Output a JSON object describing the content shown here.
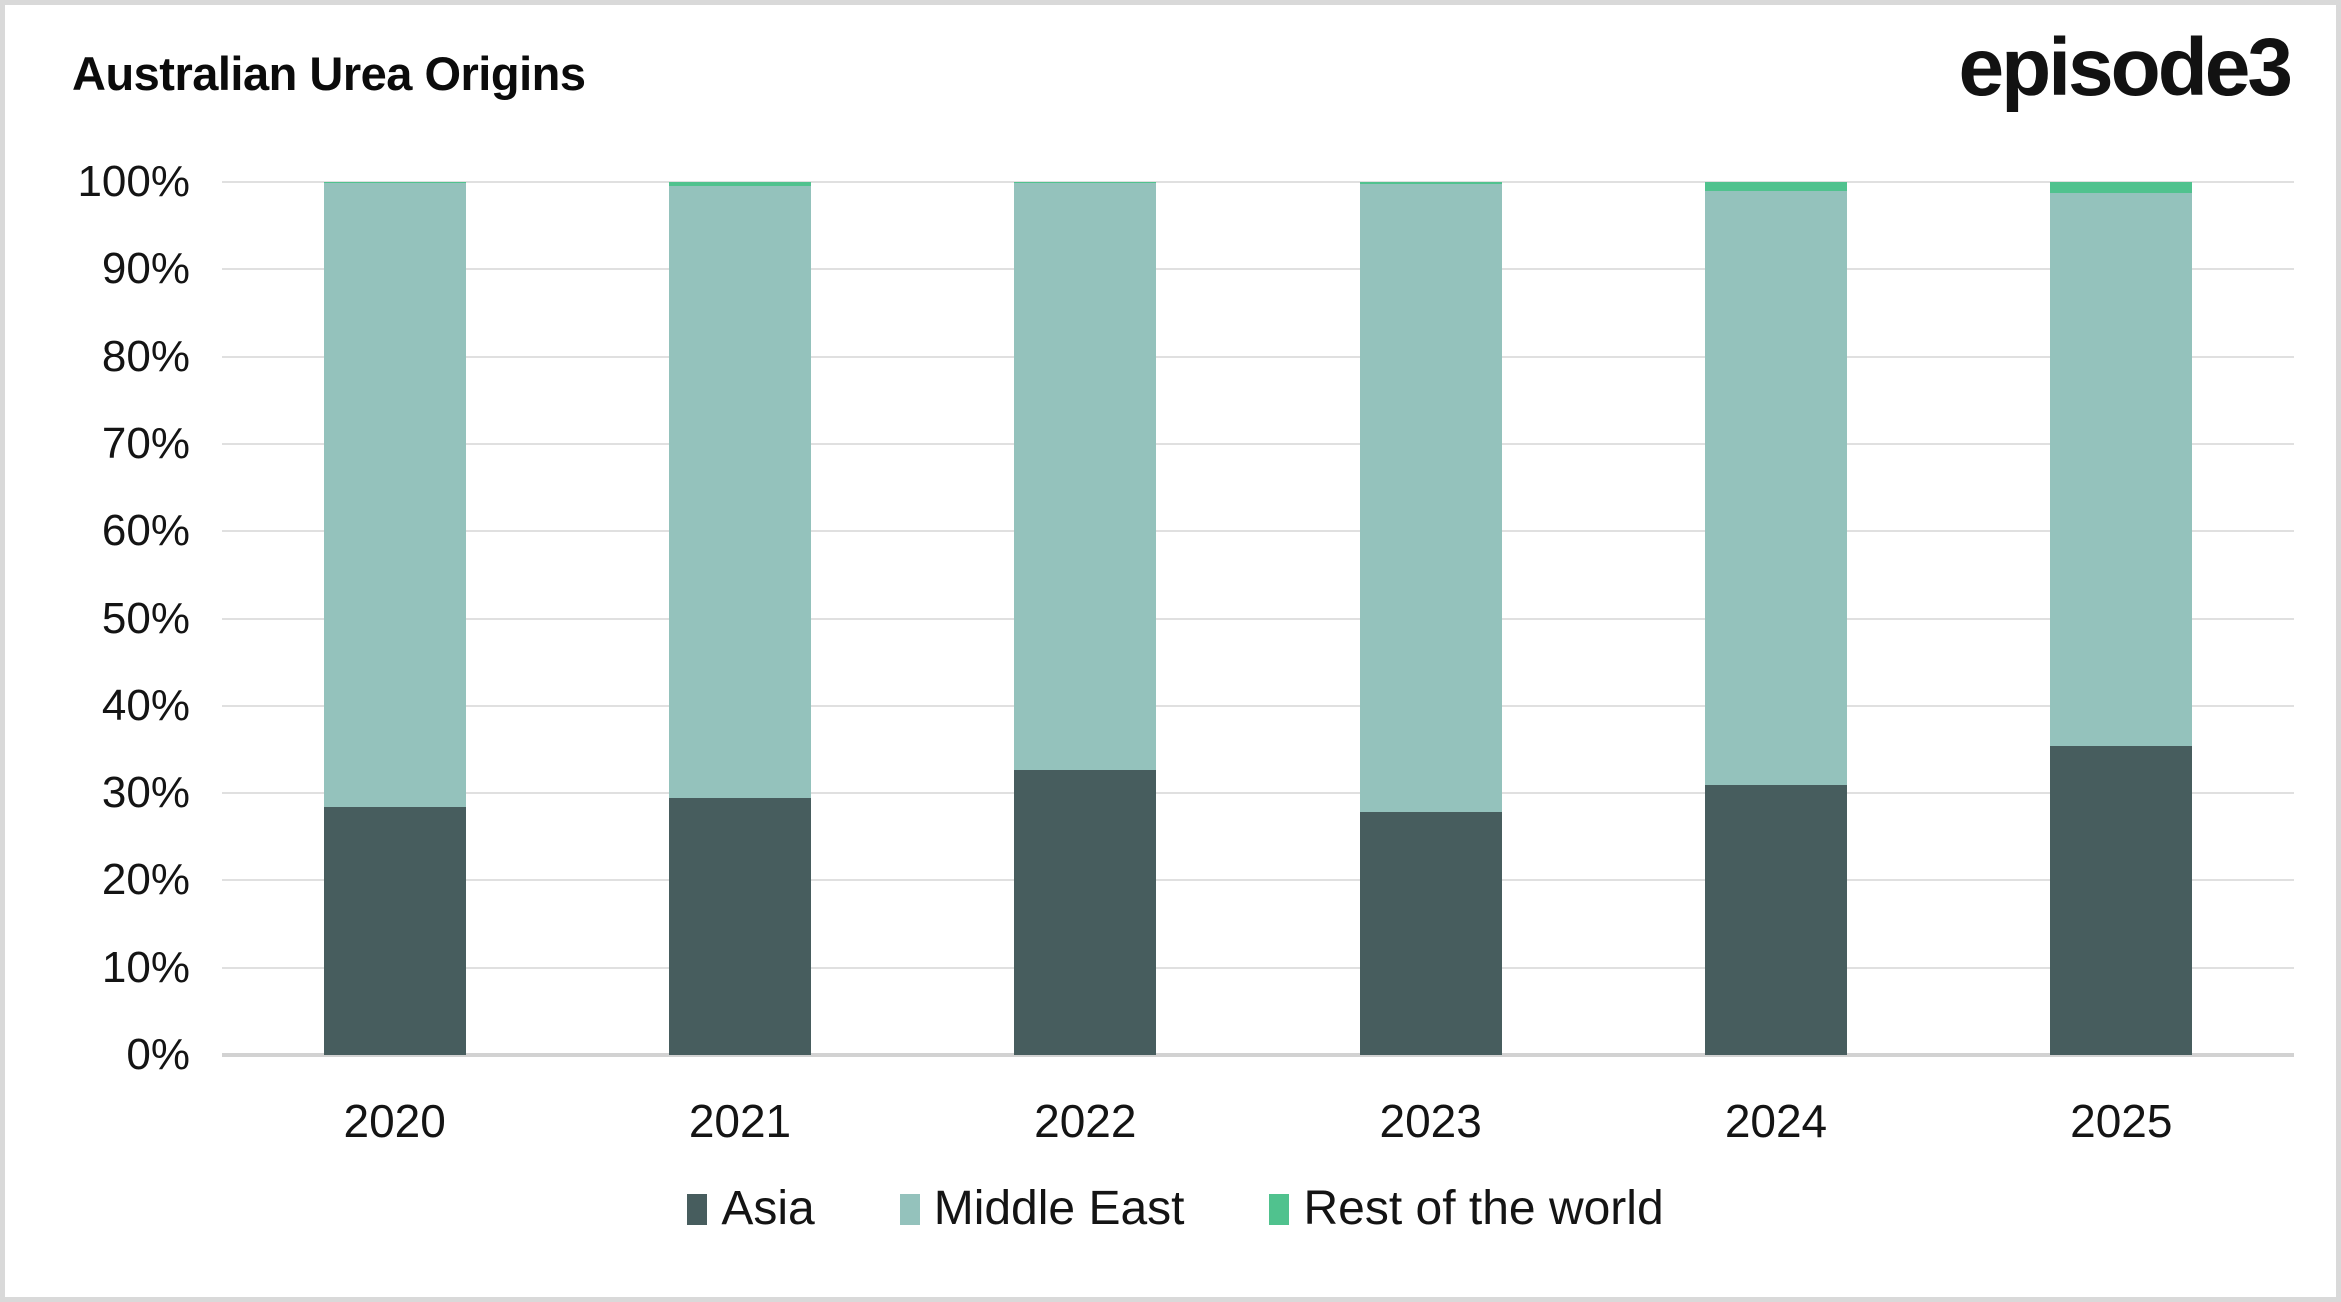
{
  "page": {
    "background": "#ffffff",
    "border_color": "#d9d9d9",
    "gridline_color": "#e0e0e0",
    "axis_line_color": "#d2d2d2",
    "text_color": "#141414"
  },
  "header": {
    "title": "Australian Urea Origins",
    "logo": "episode3"
  },
  "chart_data": {
    "type": "bar",
    "stacked": true,
    "units": "percent",
    "title": "Australian Urea Origins",
    "categories": [
      "2020",
      "2021",
      "2022",
      "2023",
      "2024",
      "2025"
    ],
    "series": [
      {
        "name": "Asia",
        "color": "#475d5e",
        "values": [
          28.4,
          29.4,
          32.6,
          27.8,
          30.9,
          35.4
        ]
      },
      {
        "name": "Middle East",
        "color": "#94c2bc",
        "values": [
          71.5,
          70.2,
          67.3,
          72.0,
          68.1,
          63.4
        ]
      },
      {
        "name": "Rest of the world",
        "color": "#50c28e",
        "values": [
          0.1,
          0.4,
          0.1,
          0.2,
          1.0,
          1.2
        ]
      }
    ],
    "xlabel": "",
    "ylabel": "",
    "ylim": [
      0,
      100
    ],
    "yticks": [
      "0%",
      "10%",
      "20%",
      "30%",
      "40%",
      "50%",
      "60%",
      "70%",
      "80%",
      "90%",
      "100%"
    ],
    "grid": true,
    "legend_position": "bottom"
  }
}
